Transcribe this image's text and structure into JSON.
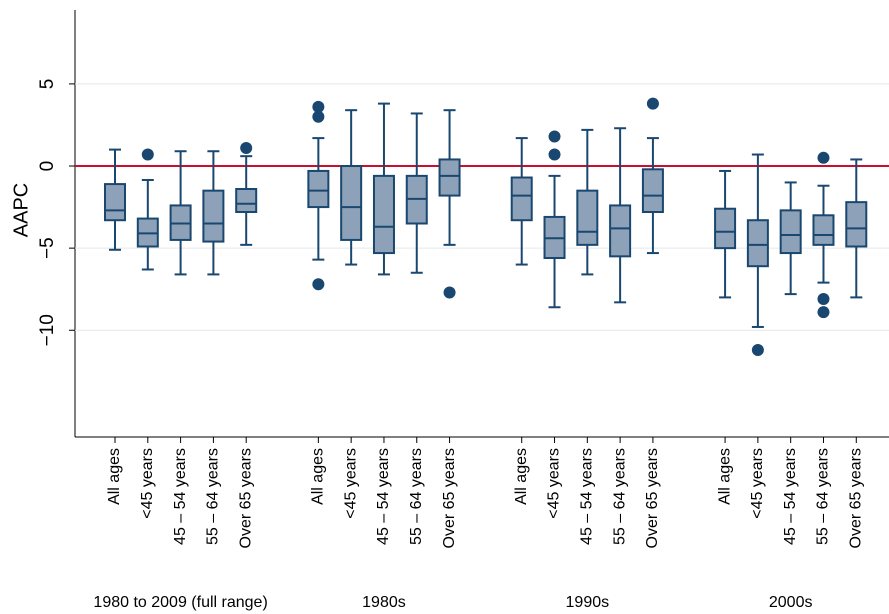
{
  "chart_data": {
    "type": "box",
    "y_label": "AAPC",
    "ylim": [
      -16.5,
      9.5
    ],
    "yticks": [
      {
        "value": 5,
        "label": "5"
      },
      {
        "value": 0,
        "label": "0"
      },
      {
        "value": -5,
        "label": "−5"
      },
      {
        "value": -10,
        "label": "−10"
      }
    ],
    "grid": true,
    "box_color": "#8da2b8",
    "line_color": "#1a476f",
    "reference_line": {
      "value": 0,
      "color": "#c8102e"
    },
    "groups": [
      {
        "name": "1980 to 2009 (full range)",
        "categories": [
          "All ages",
          "<45 years",
          "45 – 54 years",
          "55 – 64 years",
          "Over 65 years"
        ],
        "boxes": [
          {
            "low": -5.1,
            "q1": -3.3,
            "median": -2.7,
            "q3": -1.1,
            "high": 1.0,
            "outliers": []
          },
          {
            "low": -6.3,
            "q1": -4.9,
            "median": -4.1,
            "q3": -3.2,
            "high": -0.85,
            "outliers": [
              0.7
            ]
          },
          {
            "low": -6.6,
            "q1": -4.5,
            "median": -3.5,
            "q3": -2.4,
            "high": 0.9,
            "outliers": []
          },
          {
            "low": -6.6,
            "q1": -4.6,
            "median": -3.5,
            "q3": -1.5,
            "high": 0.9,
            "outliers": []
          },
          {
            "low": -4.8,
            "q1": -2.8,
            "median": -2.3,
            "q3": -1.4,
            "high": 0.6,
            "outliers": [
              1.1
            ]
          }
        ]
      },
      {
        "name": "1980s",
        "categories": [
          "All ages",
          "<45 years",
          "45 – 54 years",
          "55 – 64 years",
          "Over 65 years"
        ],
        "boxes": [
          {
            "low": -5.7,
            "q1": -2.5,
            "median": -1.5,
            "q3": -0.3,
            "high": 1.7,
            "outliers": [
              3.6,
              3.0,
              -7.2
            ]
          },
          {
            "low": -6.0,
            "q1": -4.5,
            "median": -2.5,
            "q3": 0,
            "high": 3.4,
            "outliers": []
          },
          {
            "low": -6.6,
            "q1": -5.3,
            "median": -3.7,
            "q3": -0.6,
            "high": 3.8,
            "outliers": []
          },
          {
            "low": -6.5,
            "q1": -3.5,
            "median": -2.0,
            "q3": -0.6,
            "high": 3.2,
            "outliers": []
          },
          {
            "low": -4.8,
            "q1": -1.8,
            "median": -0.6,
            "q3": 0.4,
            "high": 3.4,
            "outliers": [
              -7.7
            ]
          }
        ]
      },
      {
        "name": "1990s",
        "categories": [
          "All ages",
          "<45 years",
          "45 – 54 years",
          "55 – 64 years",
          "Over 65 years"
        ],
        "boxes": [
          {
            "low": -6.0,
            "q1": -3.3,
            "median": -1.8,
            "q3": -0.7,
            "high": 1.7,
            "outliers": []
          },
          {
            "low": -8.6,
            "q1": -5.6,
            "median": -4.4,
            "q3": -3.1,
            "high": -0.6,
            "outliers": [
              1.8,
              0.7
            ]
          },
          {
            "low": -6.6,
            "q1": -4.8,
            "median": -4.0,
            "q3": -1.5,
            "high": 2.2,
            "outliers": []
          },
          {
            "low": -8.3,
            "q1": -5.5,
            "median": -3.8,
            "q3": -2.4,
            "high": 2.3,
            "outliers": []
          },
          {
            "low": -5.3,
            "q1": -2.8,
            "median": -1.8,
            "q3": -0.2,
            "high": 1.7,
            "outliers": [
              3.8
            ]
          }
        ]
      },
      {
        "name": "2000s",
        "categories": [
          "All ages",
          "<45 years",
          "45 – 54 years",
          "55 – 64 years",
          "Over 65 years"
        ],
        "boxes": [
          {
            "low": -8.0,
            "q1": -5.0,
            "median": -4.0,
            "q3": -2.6,
            "high": -0.3,
            "outliers": []
          },
          {
            "low": -9.8,
            "q1": -6.1,
            "median": -4.8,
            "q3": -3.3,
            "high": 0.7,
            "outliers": [
              -11.2
            ]
          },
          {
            "low": -7.8,
            "q1": -5.3,
            "median": -4.2,
            "q3": -2.7,
            "high": -1.0,
            "outliers": []
          },
          {
            "low": -7.1,
            "q1": -4.8,
            "median": -4.2,
            "q3": -3.0,
            "high": -1.2,
            "outliers": [
              0.5,
              -8.1,
              -8.9
            ]
          },
          {
            "low": -8.0,
            "q1": -4.9,
            "median": -3.8,
            "q3": -2.2,
            "high": 0.4,
            "outliers": []
          }
        ]
      }
    ]
  }
}
